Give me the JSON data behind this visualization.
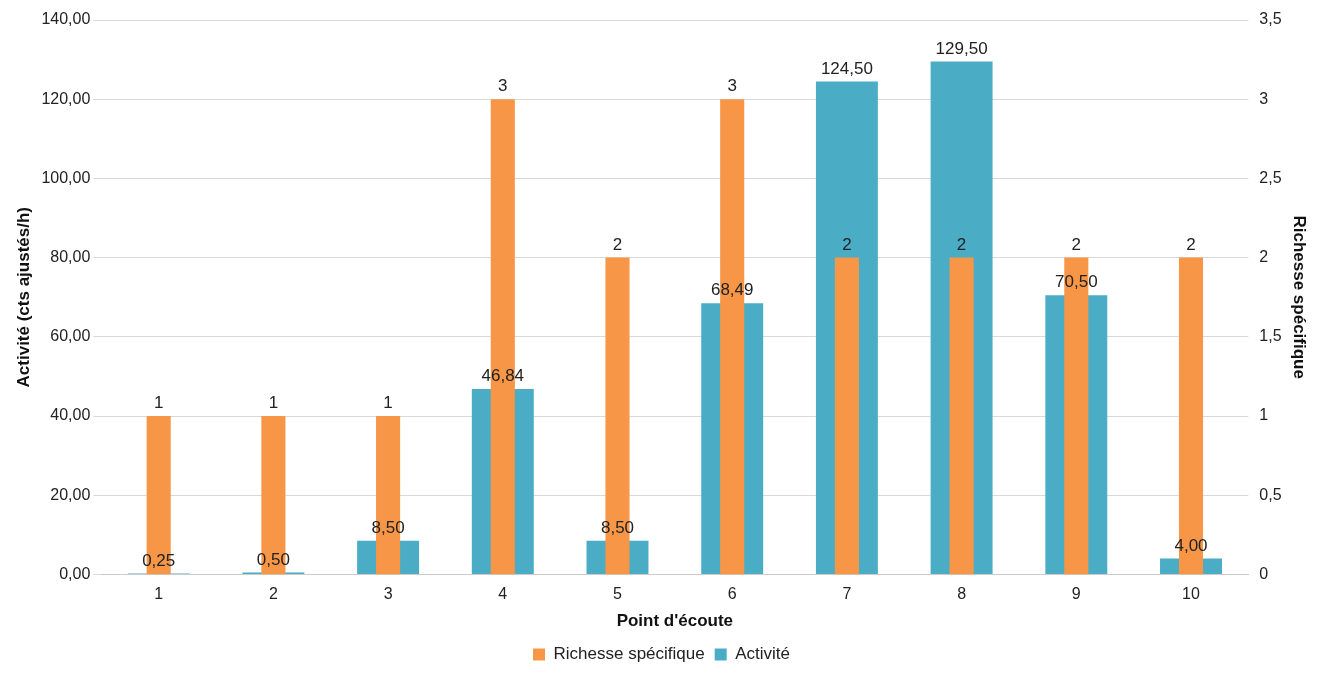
{
  "chart_data": {
    "type": "bar",
    "xlabel": "Point d'écoute",
    "ylabel": "Activité (cts ajustés/h)",
    "y2label": "Richesse spécifique",
    "categories": [
      "1",
      "2",
      "3",
      "4",
      "5",
      "6",
      "7",
      "8",
      "9",
      "10"
    ],
    "series": [
      {
        "name": "Activité",
        "color": "#4bacc6",
        "values": [
          0.25,
          0.5,
          8.5,
          46.84,
          8.5,
          68.49,
          124.5,
          129.5,
          70.5,
          4.0
        ],
        "value_labels": [
          "0,25",
          "0,50",
          "8,50",
          "46,84",
          "8,50",
          "68,49",
          "124,50",
          "129,50",
          "70,50",
          "4,00"
        ]
      },
      {
        "name": "Richesse spécifique",
        "color": "#f79646",
        "axis": "y2",
        "values": [
          1,
          1,
          1,
          3,
          2,
          3,
          2,
          2,
          2,
          2
        ],
        "value_labels": [
          "1",
          "1",
          "1",
          "3",
          "2",
          "3",
          "2",
          "2",
          "2",
          "2"
        ]
      }
    ],
    "ylim": [
      0,
      140
    ],
    "yticks": [
      {
        "value": 0,
        "label": "0,00"
      },
      {
        "value": 20,
        "label": "20,00"
      },
      {
        "value": 40,
        "label": "40,00"
      },
      {
        "value": 60,
        "label": "60,00"
      },
      {
        "value": 80,
        "label": "80,00"
      },
      {
        "value": 100,
        "label": "100,00"
      },
      {
        "value": 120,
        "label": "120,00"
      },
      {
        "value": 140,
        "label": "140,00"
      }
    ],
    "y2lim": [
      0,
      3.5
    ],
    "y2ticks": [
      0,
      {
        "value": 0.5,
        "label": "0,5"
      },
      1,
      {
        "value": 1.5,
        "label": "1,5"
      },
      2,
      {
        "value": 2.5,
        "label": "2,5"
      },
      3,
      {
        "value": 3.5,
        "label": "3,5"
      }
    ],
    "grid": "y",
    "legend": "bottom"
  }
}
